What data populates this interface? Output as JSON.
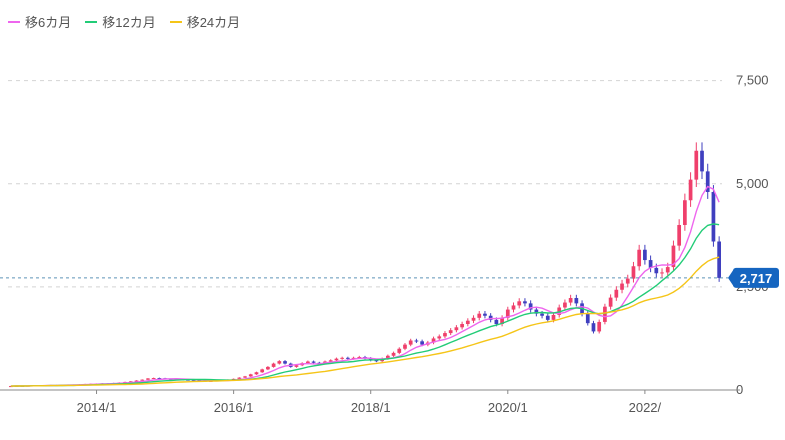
{
  "chart_data": {
    "type": "candlestick",
    "title": "",
    "xlabel": "",
    "ylabel": "",
    "ylim": [
      0,
      8000
    ],
    "yticks": [
      "0",
      "2,500",
      "5,000",
      "7,500"
    ],
    "ytick_values": [
      0,
      2500,
      5000,
      7500
    ],
    "xticks": [
      "2014/1",
      "2016/1",
      "2018/1",
      "2020/1",
      "2022/"
    ],
    "xtick_months": [
      15,
      39,
      63,
      87,
      111
    ],
    "grid": true,
    "legend": "top-left",
    "current_price": 2717,
    "current_price_label": "2,717",
    "up_color": "#ef3f6b",
    "down_color": "#3f3fbf",
    "ma_series": [
      {
        "name": "移6カ月",
        "color": "#ee66ee",
        "period": 6
      },
      {
        "name": "移12カ月",
        "color": "#22cc77",
        "period": 12
      },
      {
        "name": "移24カ月",
        "color": "#f5c518",
        "period": 24
      }
    ],
    "closes": [
      95,
      100,
      98,
      105,
      110,
      108,
      115,
      120,
      118,
      125,
      130,
      128,
      135,
      145,
      150,
      155,
      160,
      158,
      170,
      180,
      195,
      210,
      230,
      250,
      280,
      290,
      285,
      270,
      260,
      255,
      250,
      245,
      230,
      225,
      215,
      220,
      230,
      240,
      250,
      270,
      300,
      330,
      380,
      430,
      500,
      560,
      640,
      700,
      640,
      560,
      600,
      650,
      690,
      660,
      640,
      690,
      720,
      760,
      780,
      760,
      780,
      800,
      770,
      720,
      700,
      760,
      830,
      900,
      1000,
      1100,
      1200,
      1180,
      1100,
      1150,
      1250,
      1300,
      1380,
      1450,
      1520,
      1600,
      1680,
      1750,
      1850,
      1800,
      1700,
      1600,
      1750,
      1950,
      2050,
      2150,
      2100,
      1950,
      1850,
      1800,
      1700,
      1820,
      2000,
      2120,
      2230,
      2100,
      1850,
      1620,
      1420,
      1650,
      2020,
      2240,
      2430,
      2580,
      2700,
      3000,
      3400,
      3150,
      2960,
      2830,
      2850,
      2980,
      3500,
      4000,
      4600,
      5100,
      5800,
      5300,
      4800,
      3600,
      2717
    ]
  }
}
